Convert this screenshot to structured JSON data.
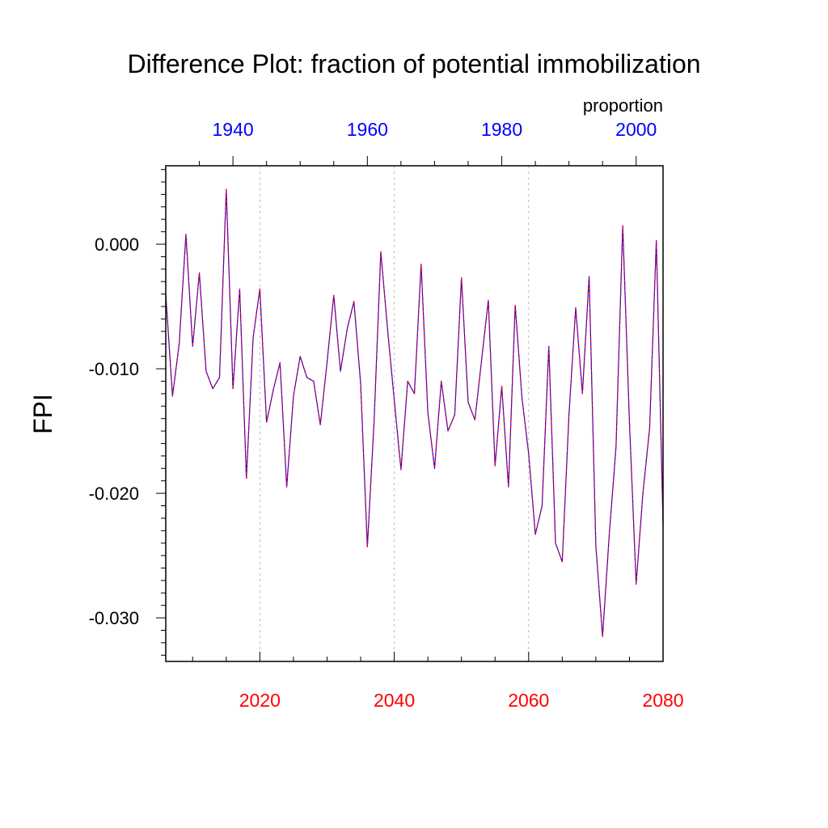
{
  "chart_data": {
    "type": "line",
    "title": "Difference Plot: fraction of potential immobilization",
    "units_label": "proportion",
    "ylabel": "FPI",
    "ylim": [
      -0.0335,
      0.0063
    ],
    "ytick_values": [
      0.0,
      -0.01,
      -0.02,
      -0.03
    ],
    "ytick_labels": [
      "0.000",
      "-0.010",
      "-0.020",
      "-0.030"
    ],
    "bottom_axis": {
      "range": [
        2006,
        2080
      ],
      "tick_values": [
        2020,
        2040,
        2060,
        2080
      ],
      "tick_labels": [
        "2020",
        "2040",
        "2060",
        "2080"
      ],
      "color": "#ff0000"
    },
    "top_axis": {
      "range": [
        1930,
        2004
      ],
      "tick_values": [
        1940,
        1960,
        1980,
        2000
      ],
      "tick_labels": [
        "1940",
        "1960",
        "1980",
        "2000"
      ],
      "color": "#0000ff"
    },
    "gridlines_x": [
      2020,
      2040,
      2060
    ],
    "series": [
      {
        "line_color": "#0000ff",
        "dash_color": "#ff0000",
        "x": [
          2006,
          2007,
          2008,
          2009,
          2010,
          2011,
          2012,
          2013,
          2014,
          2015,
          2016,
          2017,
          2018,
          2019,
          2020,
          2021,
          2022,
          2023,
          2024,
          2025,
          2026,
          2027,
          2028,
          2029,
          2030,
          2031,
          2032,
          2033,
          2034,
          2035,
          2036,
          2037,
          2038,
          2039,
          2040,
          2041,
          2042,
          2043,
          2044,
          2045,
          2046,
          2047,
          2048,
          2049,
          2050,
          2051,
          2052,
          2053,
          2054,
          2055,
          2056,
          2057,
          2058,
          2059,
          2060,
          2061,
          2062,
          2063,
          2064,
          2065,
          2066,
          2067,
          2068,
          2069,
          2070,
          2071,
          2072,
          2073,
          2074,
          2075,
          2076,
          2077,
          2078,
          2079,
          2080
        ],
        "y": [
          -0.004,
          -0.0122,
          -0.008,
          0.0008,
          -0.0082,
          -0.0023,
          -0.0102,
          -0.0116,
          -0.0107,
          0.0044,
          -0.0116,
          -0.0036,
          -0.0188,
          -0.0075,
          -0.0036,
          -0.0143,
          -0.0117,
          -0.0095,
          -0.0195,
          -0.0122,
          -0.009,
          -0.0107,
          -0.011,
          -0.0145,
          -0.0095,
          -0.0041,
          -0.0102,
          -0.0068,
          -0.0046,
          -0.0112,
          -0.0243,
          -0.0142,
          -0.0006,
          -0.0068,
          -0.0125,
          -0.0181,
          -0.011,
          -0.012,
          -0.0016,
          -0.0135,
          -0.018,
          -0.011,
          -0.015,
          -0.0137,
          -0.0027,
          -0.0127,
          -0.0141,
          -0.0093,
          -0.0045,
          -0.0178,
          -0.0114,
          -0.0195,
          -0.0049,
          -0.0123,
          -0.0168,
          -0.0233,
          -0.021,
          -0.0082,
          -0.024,
          -0.0255,
          -0.0137,
          -0.0051,
          -0.012,
          -0.0026,
          -0.0242,
          -0.0315,
          -0.0233,
          -0.0163,
          0.0015,
          -0.0143,
          -0.0273,
          -0.02,
          -0.0148,
          0.0003,
          -0.0225
        ]
      }
    ]
  }
}
